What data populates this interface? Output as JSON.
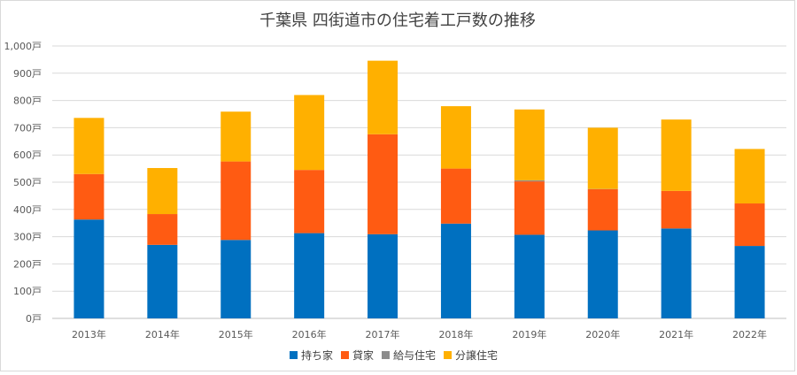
{
  "chart_data": {
    "type": "bar",
    "stacked": true,
    "title": "千葉県 四街道市の住宅着工戸数の推移",
    "xlabel": "",
    "ylabel": "",
    "categories": [
      "2013年",
      "2014年",
      "2015年",
      "2016年",
      "2017年",
      "2018年",
      "2019年",
      "2020年",
      "2021年",
      "2022年"
    ],
    "ylim": [
      0,
      1000
    ],
    "yticks": [
      0,
      100,
      200,
      300,
      400,
      500,
      600,
      700,
      800,
      900,
      1000
    ],
    "ytick_labels": [
      "0戸",
      "100戸",
      "200戸",
      "300戸",
      "400戸",
      "500戸",
      "600戸",
      "700戸",
      "800戸",
      "900戸",
      "1,000戸"
    ],
    "grid": true,
    "legend_position": "bottom",
    "series": [
      {
        "name": "持ち家",
        "color": "#0070C0",
        "values": [
          363,
          270,
          288,
          313,
          309,
          348,
          307,
          323,
          330,
          266
        ]
      },
      {
        "name": "貸家",
        "color": "#FF5B12",
        "values": [
          167,
          113,
          288,
          232,
          367,
          202,
          196,
          151,
          138,
          156
        ]
      },
      {
        "name": "給与住宅",
        "color": "#8C8C8C",
        "values": [
          0,
          0,
          0,
          0,
          0,
          0,
          4,
          1,
          0,
          0
        ]
      },
      {
        "name": "分譲住宅",
        "color": "#FFB000",
        "values": [
          206,
          169,
          183,
          275,
          270,
          229,
          260,
          225,
          262,
          200
        ]
      }
    ]
  }
}
